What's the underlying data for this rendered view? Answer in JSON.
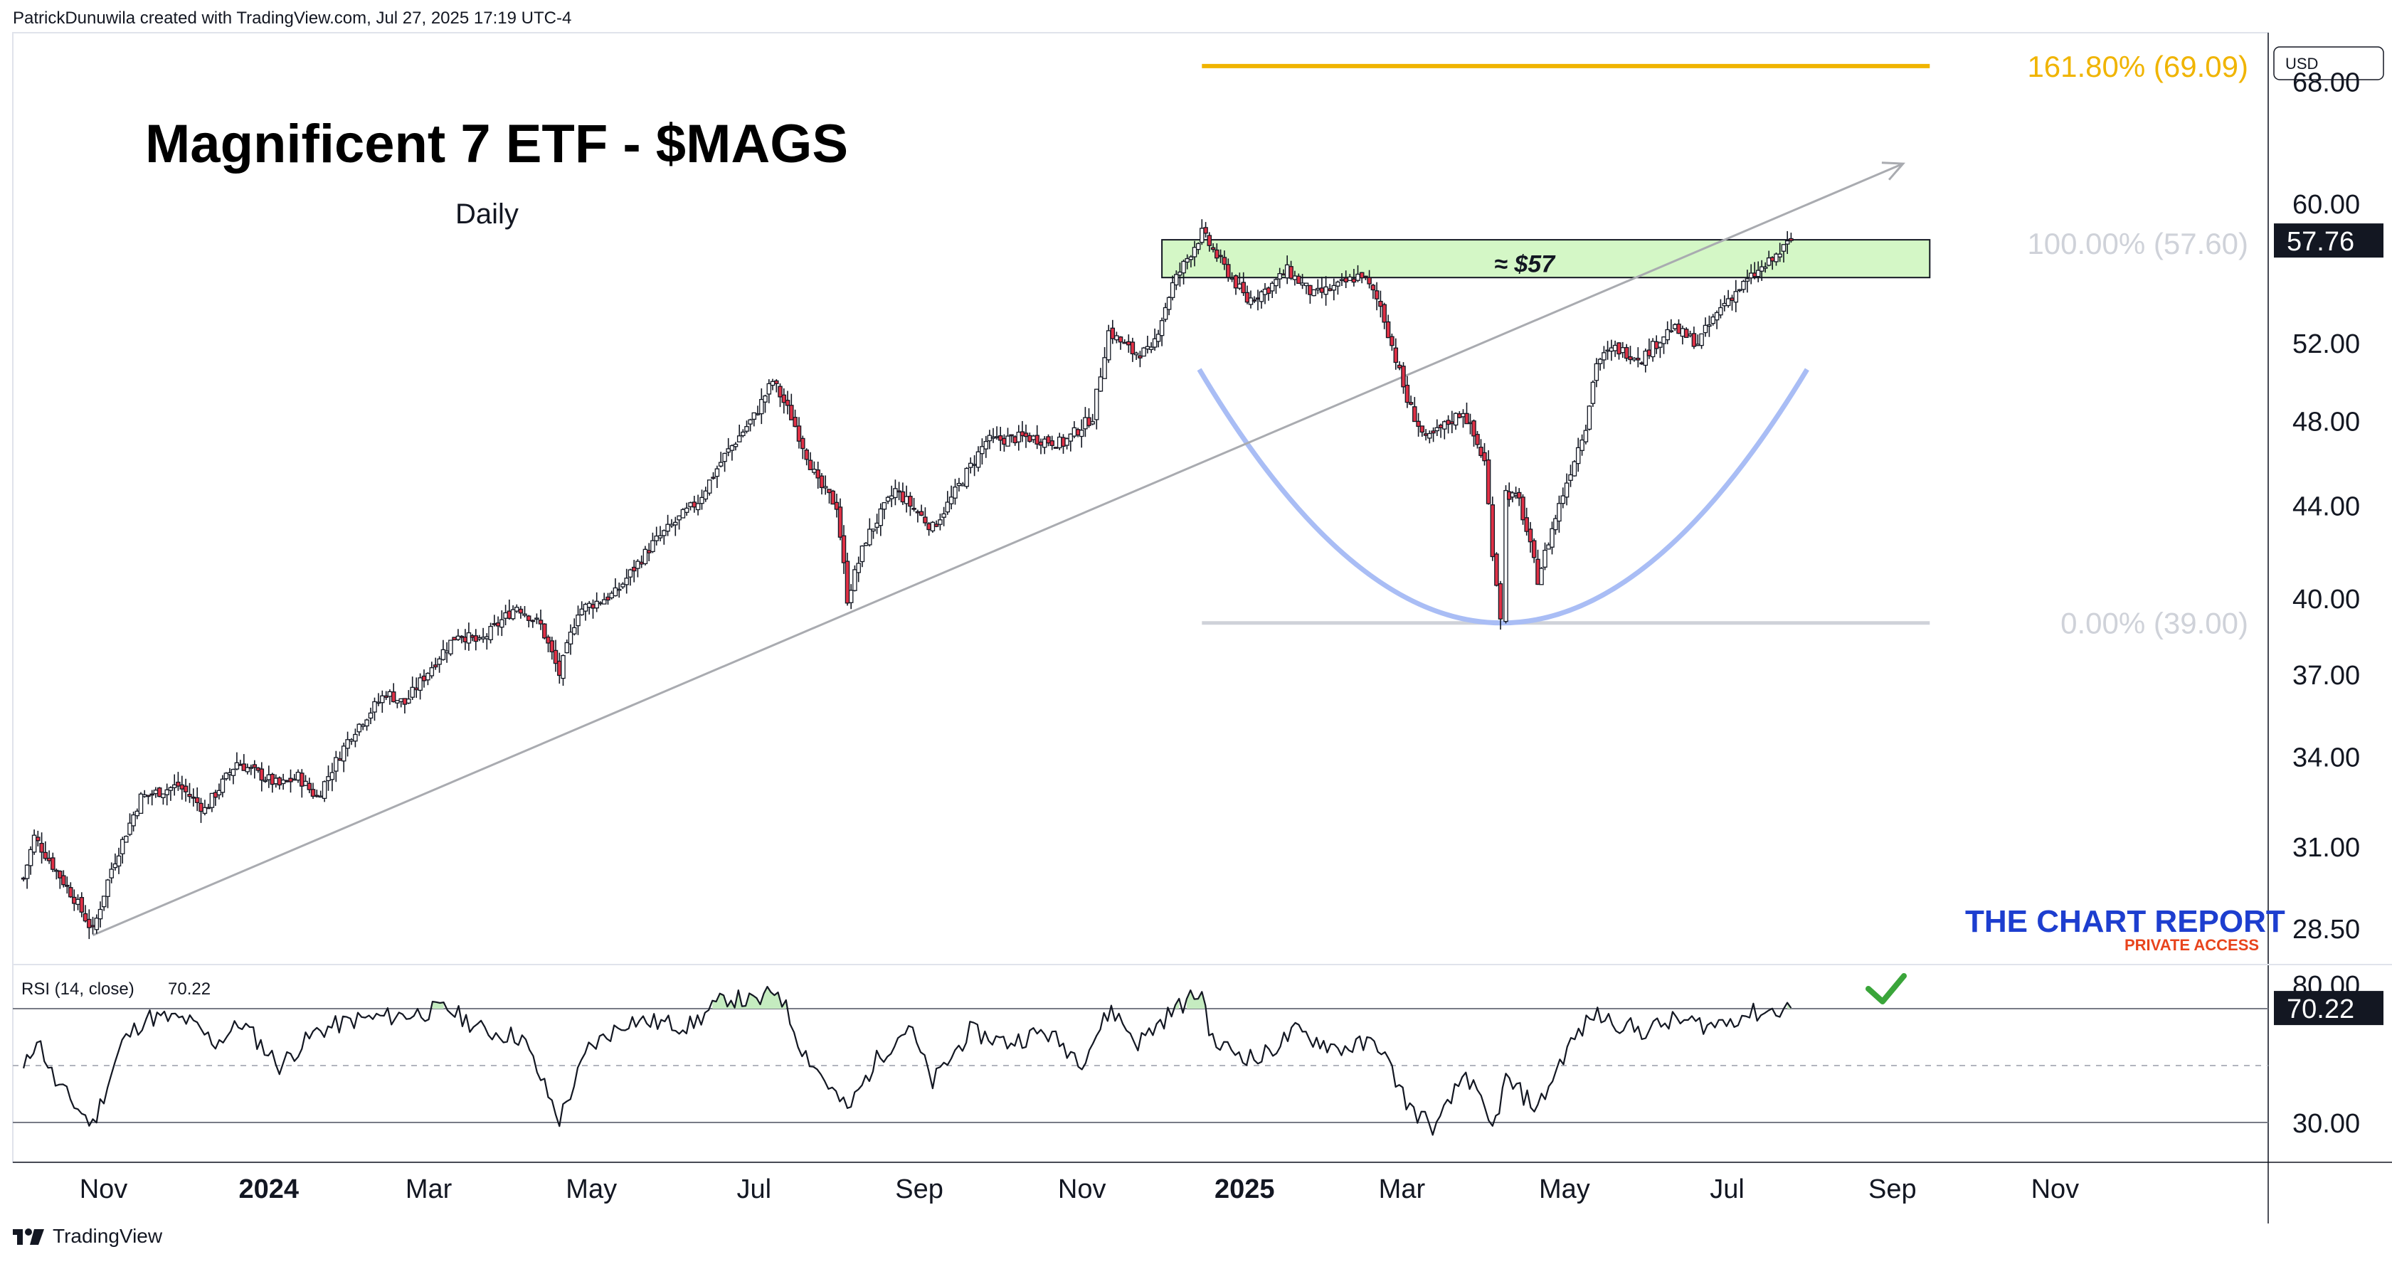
{
  "header": {
    "attribution": "PatrickDunuwila created with TradingView.com, Jul 27, 2025 17:19 UTC-4"
  },
  "footer": {
    "brand": "TradingView"
  },
  "colors": {
    "candle_up": "#ffffff",
    "candle_down": "#e03146",
    "candle_outline": "#131722",
    "fib_extension": "#f0b400",
    "fib_level": "#cfd2d9",
    "trendline": "#a9abb0",
    "cup_arc": "#a9bdf5",
    "zone_fill": "#d4f7c6",
    "rsi_line": "#131722",
    "rsi_overbought_fill": "#c5ecc0",
    "checkmark": "#3aa53a",
    "logo_blue": "#1d3ecf",
    "logo_red": "#e8441d"
  },
  "chart_data": [
    {
      "type": "candlestick",
      "title": "Magnificent 7 ETF - $MAGS",
      "subtitle": "Daily",
      "currency": "USD",
      "scale": "log",
      "y_ticks": [
        "28.50",
        "31.00",
        "34.00",
        "37.00",
        "40.00",
        "44.00",
        "48.00",
        "52.00",
        "60.00",
        "68.00"
      ],
      "x_ticks": [
        "Nov",
        "2024",
        "Mar",
        "May",
        "Jul",
        "Sep",
        "Nov",
        "2025",
        "Mar",
        "May",
        "Jul",
        "Sep",
        "Nov"
      ],
      "last_price": "57.76",
      "anchors": [
        [
          "2023-10-01",
          30.0
        ],
        [
          "2023-10-05",
          31.3
        ],
        [
          "2023-10-12",
          30.4
        ],
        [
          "2023-10-20",
          29.4
        ],
        [
          "2023-10-27",
          28.4
        ],
        [
          "2023-11-03",
          30.3
        ],
        [
          "2023-11-14",
          32.6
        ],
        [
          "2023-11-28",
          33.0
        ],
        [
          "2023-12-08",
          32.2
        ],
        [
          "2023-12-20",
          33.8
        ],
        [
          "2024-01-05",
          33.0
        ],
        [
          "2024-01-12",
          33.3
        ],
        [
          "2024-01-19",
          32.6
        ],
        [
          "2024-02-01",
          34.8
        ],
        [
          "2024-02-14",
          36.3
        ],
        [
          "2024-02-21",
          35.9
        ],
        [
          "2024-03-05",
          37.7
        ],
        [
          "2024-03-12",
          38.6
        ],
        [
          "2024-03-20",
          38.2
        ],
        [
          "2024-04-03",
          39.7
        ],
        [
          "2024-04-12",
          38.9
        ],
        [
          "2024-04-19",
          37.0
        ],
        [
          "2024-04-26",
          39.5
        ],
        [
          "2024-05-10",
          40.2
        ],
        [
          "2024-05-24",
          42.3
        ],
        [
          "2024-06-10",
          44.2
        ],
        [
          "2024-06-20",
          46.3
        ],
        [
          "2024-07-01",
          48.2
        ],
        [
          "2024-07-08",
          50.0
        ],
        [
          "2024-07-15",
          48.2
        ],
        [
          "2024-07-25",
          45.0
        ],
        [
          "2024-08-01",
          44.0
        ],
        [
          "2024-08-05",
          40.0
        ],
        [
          "2024-08-12",
          42.5
        ],
        [
          "2024-08-23",
          44.7
        ],
        [
          "2024-09-06",
          43.0
        ],
        [
          "2024-09-13",
          44.3
        ],
        [
          "2024-09-26",
          47.0
        ],
        [
          "2024-10-11",
          47.2
        ],
        [
          "2024-10-25",
          46.9
        ],
        [
          "2024-11-05",
          48.2
        ],
        [
          "2024-11-11",
          52.6
        ],
        [
          "2024-11-20",
          51.5
        ],
        [
          "2024-11-27",
          51.5
        ],
        [
          "2024-12-05",
          55.2
        ],
        [
          "2024-12-16",
          58.2
        ],
        [
          "2024-12-23",
          56.5
        ],
        [
          "2025-01-02",
          54.3
        ],
        [
          "2025-01-10",
          55.0
        ],
        [
          "2025-01-17",
          56.0
        ],
        [
          "2025-01-27",
          54.6
        ],
        [
          "2025-02-05",
          55.1
        ],
        [
          "2025-02-14",
          55.8
        ],
        [
          "2025-02-21",
          54.0
        ],
        [
          "2025-03-03",
          49.0
        ],
        [
          "2025-03-10",
          47.0
        ],
        [
          "2025-03-24",
          48.5
        ],
        [
          "2025-04-01",
          46.0
        ],
        [
          "2025-04-04",
          42.0
        ],
        [
          "2025-04-07",
          39.3
        ],
        [
          "2025-04-09",
          44.6
        ],
        [
          "2025-04-14",
          44.2
        ],
        [
          "2025-04-21",
          40.8
        ],
        [
          "2025-04-29",
          44.0
        ],
        [
          "2025-05-09",
          47.8
        ],
        [
          "2025-05-13",
          51.0
        ],
        [
          "2025-05-20",
          51.7
        ],
        [
          "2025-05-30",
          51.2
        ],
        [
          "2025-06-10",
          52.8
        ],
        [
          "2025-06-20",
          52.0
        ],
        [
          "2025-06-30",
          54.2
        ],
        [
          "2025-07-10",
          55.6
        ],
        [
          "2025-07-18",
          56.6
        ],
        [
          "2025-07-25",
          57.76
        ]
      ],
      "annotations": {
        "zone_label": "≈ $57",
        "fib_levels": [
          {
            "label": "161.80% (69.09)",
            "price": 69.09
          },
          {
            "label": "100.00% (57.60)",
            "price": 57.6
          },
          {
            "label": "0.00% (39.00)",
            "price": 39.0
          }
        ],
        "trendline": {
          "from": [
            "2023-10-27",
            28.3
          ],
          "to": [
            "2025-09-05",
            62.5
          ]
        },
        "zone": {
          "from": "2024-12-01",
          "to": "2025-09-15",
          "low": 55.6,
          "high": 57.8
        },
        "cup": {
          "from": "2024-12-15",
          "bottom": [
            "2025-04-07",
            39.0
          ],
          "to": "2025-07-31",
          "rim": 50.6
        }
      }
    },
    {
      "type": "line",
      "title": "RSI (14, close)",
      "latest": "70.22",
      "bands": {
        "upper": 70,
        "middle": 50,
        "lower": 30
      },
      "y_ticks": [
        "80.00",
        "30.00"
      ],
      "anchors": [
        [
          "2023-10-01",
          48
        ],
        [
          "2023-10-06",
          60
        ],
        [
          "2023-10-13",
          44
        ],
        [
          "2023-10-27",
          29
        ],
        [
          "2023-11-07",
          58
        ],
        [
          "2023-11-16",
          67
        ],
        [
          "2023-12-01",
          66
        ],
        [
          "2023-12-12",
          58
        ],
        [
          "2023-12-22",
          65
        ],
        [
          "2024-01-05",
          50
        ],
        [
          "2024-01-19",
          62
        ],
        [
          "2024-02-02",
          66
        ],
        [
          "2024-02-23",
          68
        ],
        [
          "2024-03-08",
          70
        ],
        [
          "2024-03-22",
          62
        ],
        [
          "2024-04-05",
          60
        ],
        [
          "2024-04-19",
          31
        ],
        [
          "2024-04-30",
          56
        ],
        [
          "2024-05-15",
          66
        ],
        [
          "2024-06-07",
          64
        ],
        [
          "2024-06-21",
          74
        ],
        [
          "2024-07-02",
          72
        ],
        [
          "2024-07-10",
          77
        ],
        [
          "2024-07-19",
          56
        ],
        [
          "2024-08-05",
          34
        ],
        [
          "2024-08-16",
          52
        ],
        [
          "2024-08-28",
          64
        ],
        [
          "2024-09-06",
          44
        ],
        [
          "2024-09-20",
          62
        ],
        [
          "2024-10-04",
          58
        ],
        [
          "2024-10-18",
          62
        ],
        [
          "2024-11-01",
          52
        ],
        [
          "2024-11-12",
          70
        ],
        [
          "2024-11-22",
          58
        ],
        [
          "2024-12-06",
          70
        ],
        [
          "2024-12-16",
          76
        ],
        [
          "2024-12-20",
          58
        ],
        [
          "2025-01-06",
          52
        ],
        [
          "2025-01-20",
          62
        ],
        [
          "2025-02-05",
          56
        ],
        [
          "2025-02-20",
          58
        ],
        [
          "2025-03-04",
          35
        ],
        [
          "2025-03-14",
          28
        ],
        [
          "2025-03-25",
          48
        ],
        [
          "2025-04-04",
          27
        ],
        [
          "2025-04-09",
          45
        ],
        [
          "2025-04-21",
          35
        ],
        [
          "2025-05-02",
          56
        ],
        [
          "2025-05-12",
          68
        ],
        [
          "2025-05-30",
          62
        ],
        [
          "2025-06-12",
          66
        ],
        [
          "2025-06-25",
          64
        ],
        [
          "2025-07-08",
          68
        ],
        [
          "2025-07-25",
          70.22
        ]
      ]
    }
  ],
  "watermark_logo": {
    "line1": "THE CHART REPORT",
    "line2": "PRIVATE ACCESS"
  }
}
